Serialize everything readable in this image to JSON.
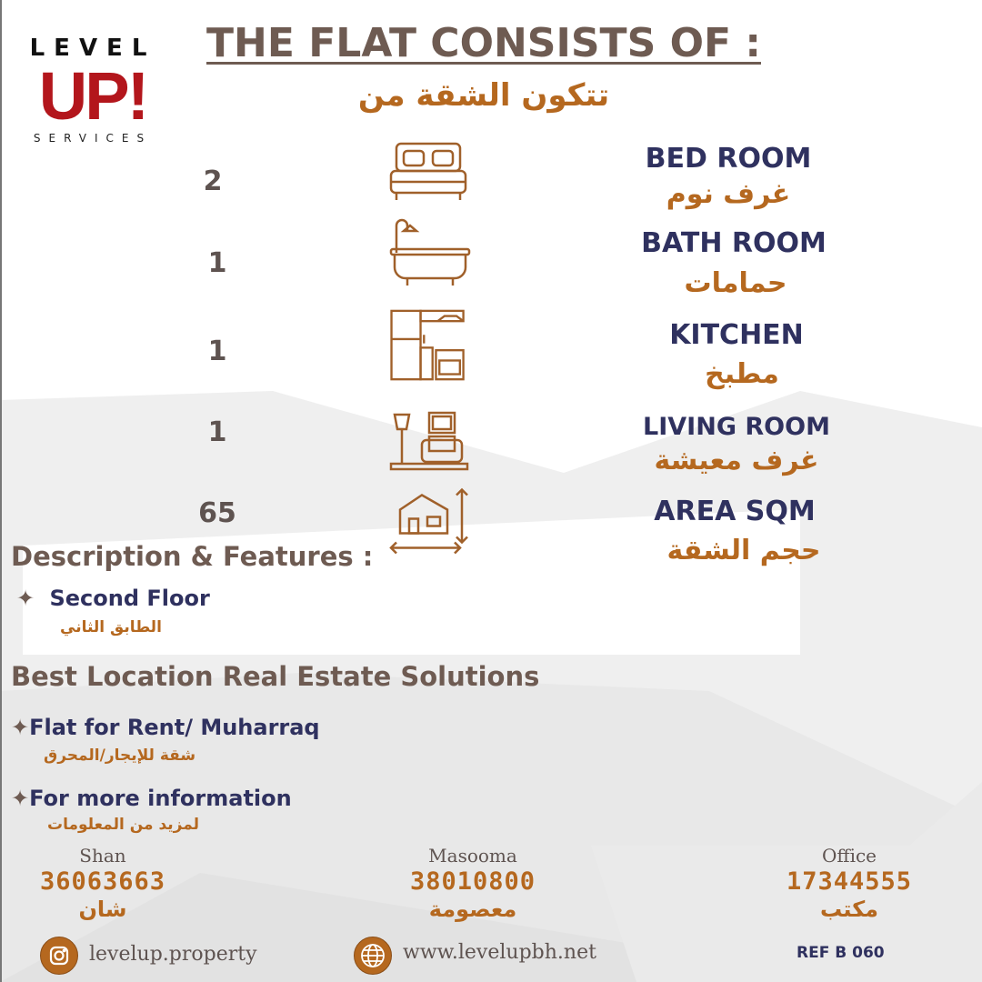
{
  "logo": {
    "top": "LEVEL",
    "main": "UP!",
    "bottom": "SERVICES"
  },
  "title": "THE FLAT CONSISTS OF :",
  "title_ar": "تتكون الشقة من",
  "rooms": [
    {
      "count": "2",
      "label": "BED ROOM",
      "label_ar": "غرف نوم",
      "icon": "bed-icon"
    },
    {
      "count": "1",
      "label": "BATH ROOM",
      "label_ar": "حمامات",
      "icon": "bathtub-icon"
    },
    {
      "count": "1",
      "label": "KITCHEN",
      "label_ar": "مطبخ",
      "icon": "kitchen-icon"
    },
    {
      "count": "1",
      "label": "LIVING ROOM",
      "label_ar": "غرف معيشة",
      "icon": "living-room-icon"
    },
    {
      "count": "65",
      "label": "AREA SQM",
      "label_ar": "حجم الشقة",
      "icon": "house-area-icon"
    }
  ],
  "description": {
    "heading": "Description & Features :",
    "items": [
      {
        "label": "Second Floor",
        "label_ar": "الطابق الثاني"
      }
    ]
  },
  "location": {
    "heading": "Best Location Real Estate Solutions",
    "items": [
      {
        "label": "Flat for Rent/ Muharraq",
        "label_ar": "شقة للإيجار/المحرق"
      },
      {
        "label": "For more information",
        "label_ar": "لمزيد من المعلومات"
      }
    ]
  },
  "contacts": [
    {
      "name": "Shan",
      "phone": "36063663",
      "name_ar": "شان"
    },
    {
      "name": "Masooma",
      "phone": "38010800",
      "name_ar": "معصومة"
    },
    {
      "name": "Office",
      "phone": "17344555",
      "name_ar": "مكتب"
    }
  ],
  "footer": {
    "instagram": "levelup.property",
    "website": "www.levelupbh.net",
    "ref": "REF B 060"
  },
  "colors": {
    "brown": "#6e5b52",
    "orange": "#b5681f",
    "navy": "#2f315f",
    "logo_red": "#b3161c"
  }
}
